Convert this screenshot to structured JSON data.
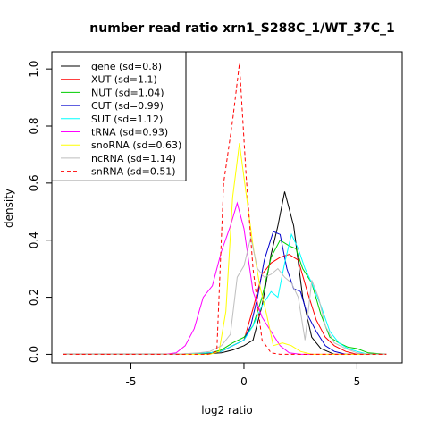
{
  "chart_data": {
    "type": "line",
    "title": "number read ratio xrn1_S288C_1/WT_37C_1",
    "xlabel": "log2 ratio",
    "ylabel": "density",
    "xlim": [
      -8.5,
      7
    ],
    "ylim": [
      -0.03,
      1.06
    ],
    "x_ticks": [
      -5,
      0,
      5
    ],
    "x_tick_labels": [
      "-5",
      "0",
      "5"
    ],
    "y_ticks": [
      0.0,
      0.2,
      0.4,
      0.6,
      0.8,
      1.0
    ],
    "y_tick_labels": [
      "0.0",
      "0.2",
      "0.4",
      "0.6",
      "0.8",
      "1.0"
    ],
    "legend_position": "top-left",
    "grid": false,
    "series": [
      {
        "name": "gene (sd=0.8)",
        "color": "#000000",
        "dash": "solid",
        "points": [
          [
            -8,
            0
          ],
          [
            -3,
            0
          ],
          [
            -1.5,
            0.003
          ],
          [
            -1,
            0.005
          ],
          [
            -0.5,
            0.015
          ],
          [
            0,
            0.03
          ],
          [
            0.4,
            0.05
          ],
          [
            0.8,
            0.17
          ],
          [
            1.2,
            0.35
          ],
          [
            1.5,
            0.45
          ],
          [
            1.8,
            0.57
          ],
          [
            2.2,
            0.45
          ],
          [
            2.6,
            0.2
          ],
          [
            3,
            0.06
          ],
          [
            3.4,
            0.02
          ],
          [
            4,
            0
          ],
          [
            6.3,
            0
          ]
        ]
      },
      {
        "name": "XUT (sd=1.1)",
        "color": "#ff0000",
        "dash": "solid",
        "points": [
          [
            -8,
            0
          ],
          [
            -3,
            0
          ],
          [
            -1.5,
            0.005
          ],
          [
            -1,
            0.01
          ],
          [
            -0.5,
            0.03
          ],
          [
            0,
            0.05
          ],
          [
            0.4,
            0.16
          ],
          [
            0.8,
            0.28
          ],
          [
            1.2,
            0.32
          ],
          [
            1.6,
            0.34
          ],
          [
            2,
            0.35
          ],
          [
            2.4,
            0.33
          ],
          [
            2.8,
            0.22
          ],
          [
            3.2,
            0.12
          ],
          [
            3.6,
            0.06
          ],
          [
            4,
            0.03
          ],
          [
            4.5,
            0.01
          ],
          [
            5,
            0
          ],
          [
            6.3,
            0
          ]
        ]
      },
      {
        "name": "NUT (sd=1.04)",
        "color": "#00cd00",
        "dash": "solid",
        "points": [
          [
            -8,
            0
          ],
          [
            -3,
            0
          ],
          [
            -1.5,
            0.005
          ],
          [
            -1,
            0.015
          ],
          [
            -0.5,
            0.04
          ],
          [
            0,
            0.06
          ],
          [
            0.4,
            0.1
          ],
          [
            0.8,
            0.2
          ],
          [
            1.2,
            0.34
          ],
          [
            1.6,
            0.4
          ],
          [
            2,
            0.38
          ],
          [
            2.3,
            0.37
          ],
          [
            2.6,
            0.3
          ],
          [
            3,
            0.25
          ],
          [
            3.4,
            0.14
          ],
          [
            3.8,
            0.06
          ],
          [
            4.2,
            0.04
          ],
          [
            4.6,
            0.025
          ],
          [
            5,
            0.02
          ],
          [
            5.5,
            0.005
          ],
          [
            6.3,
            0
          ]
        ]
      },
      {
        "name": "CUT (sd=0.99)",
        "color": "#0000cd",
        "dash": "solid",
        "points": [
          [
            -8,
            0
          ],
          [
            -3,
            0
          ],
          [
            -1.5,
            0.005
          ],
          [
            -1,
            0.01
          ],
          [
            -0.5,
            0.03
          ],
          [
            0,
            0.05
          ],
          [
            0.3,
            0.1
          ],
          [
            0.6,
            0.2
          ],
          [
            0.9,
            0.33
          ],
          [
            1.3,
            0.43
          ],
          [
            1.6,
            0.42
          ],
          [
            1.9,
            0.3
          ],
          [
            2.2,
            0.23
          ],
          [
            2.5,
            0.22
          ],
          [
            2.8,
            0.14
          ],
          [
            3.2,
            0.08
          ],
          [
            3.6,
            0.03
          ],
          [
            4,
            0.01
          ],
          [
            4.5,
            0
          ],
          [
            6.3,
            0
          ]
        ]
      },
      {
        "name": "SUT (sd=1.12)",
        "color": "#00ffff",
        "dash": "solid",
        "points": [
          [
            -8,
            0
          ],
          [
            -3,
            0
          ],
          [
            -1.5,
            0.005
          ],
          [
            -1,
            0.01
          ],
          [
            -0.5,
            0.03
          ],
          [
            0,
            0.05
          ],
          [
            0.4,
            0.1
          ],
          [
            0.8,
            0.17
          ],
          [
            1.2,
            0.22
          ],
          [
            1.5,
            0.2
          ],
          [
            1.8,
            0.32
          ],
          [
            2.1,
            0.42
          ],
          [
            2.4,
            0.37
          ],
          [
            2.7,
            0.3
          ],
          [
            3,
            0.25
          ],
          [
            3.4,
            0.17
          ],
          [
            3.8,
            0.08
          ],
          [
            4.2,
            0.04
          ],
          [
            4.6,
            0.02
          ],
          [
            5,
            0.01
          ],
          [
            5.5,
            0
          ],
          [
            6.3,
            0
          ]
        ]
      },
      {
        "name": "tRNA (sd=0.93)",
        "color": "#ff00ff",
        "dash": "solid",
        "points": [
          [
            -8,
            0
          ],
          [
            -3.5,
            0
          ],
          [
            -3,
            0.005
          ],
          [
            -2.6,
            0.03
          ],
          [
            -2.2,
            0.09
          ],
          [
            -1.8,
            0.2
          ],
          [
            -1.4,
            0.24
          ],
          [
            -1,
            0.36
          ],
          [
            -0.6,
            0.45
          ],
          [
            -0.3,
            0.53
          ],
          [
            0,
            0.44
          ],
          [
            0.4,
            0.22
          ],
          [
            0.8,
            0.13
          ],
          [
            1.2,
            0.08
          ],
          [
            1.6,
            0.03
          ],
          [
            2,
            0.005
          ],
          [
            2.5,
            0
          ],
          [
            6.3,
            0
          ]
        ]
      },
      {
        "name": "snoRNA (sd=0.63)",
        "color": "#ffff00",
        "dash": "solid",
        "points": [
          [
            -8,
            0
          ],
          [
            -1.5,
            0
          ],
          [
            -1.1,
            0.01
          ],
          [
            -0.8,
            0.15
          ],
          [
            -0.5,
            0.55
          ],
          [
            -0.2,
            0.74
          ],
          [
            0.1,
            0.56
          ],
          [
            0.4,
            0.38
          ],
          [
            0.7,
            0.24
          ],
          [
            1,
            0.14
          ],
          [
            1.3,
            0.03
          ],
          [
            1.7,
            0.04
          ],
          [
            2.1,
            0.03
          ],
          [
            2.5,
            0.01
          ],
          [
            3,
            0
          ],
          [
            6.3,
            0
          ]
        ]
      },
      {
        "name": "ncRNA (sd=1.14)",
        "color": "#bebebe",
        "dash": "solid",
        "points": [
          [
            -8,
            0
          ],
          [
            -3,
            0
          ],
          [
            -2,
            0.005
          ],
          [
            -1.5,
            0.01
          ],
          [
            -1,
            0.03
          ],
          [
            -0.6,
            0.07
          ],
          [
            -0.3,
            0.27
          ],
          [
            0,
            0.31
          ],
          [
            0.3,
            0.41
          ],
          [
            0.6,
            0.3
          ],
          [
            0.9,
            0.27
          ],
          [
            1.2,
            0.28
          ],
          [
            1.5,
            0.3
          ],
          [
            1.8,
            0.27
          ],
          [
            2.1,
            0.25
          ],
          [
            2.4,
            0.2
          ],
          [
            2.7,
            0.05
          ],
          [
            3,
            0.26
          ],
          [
            3.3,
            0.2
          ],
          [
            3.6,
            0.1
          ],
          [
            4,
            0.04
          ],
          [
            4.5,
            0.02
          ],
          [
            5,
            0.005
          ],
          [
            5.5,
            0
          ],
          [
            6.3,
            0
          ]
        ]
      },
      {
        "name": "snRNA (sd=0.51)",
        "color": "#ff0000",
        "dash": "dashed",
        "points": [
          [
            -8,
            0
          ],
          [
            -1.6,
            0
          ],
          [
            -1.2,
            0.01
          ],
          [
            -0.9,
            0.6
          ],
          [
            -0.5,
            0.82
          ],
          [
            -0.2,
            1.02
          ],
          [
            0.1,
            0.62
          ],
          [
            0.4,
            0.3
          ],
          [
            0.8,
            0.05
          ],
          [
            1.2,
            0.005
          ],
          [
            1.6,
            0
          ],
          [
            6.3,
            0
          ]
        ]
      }
    ]
  }
}
